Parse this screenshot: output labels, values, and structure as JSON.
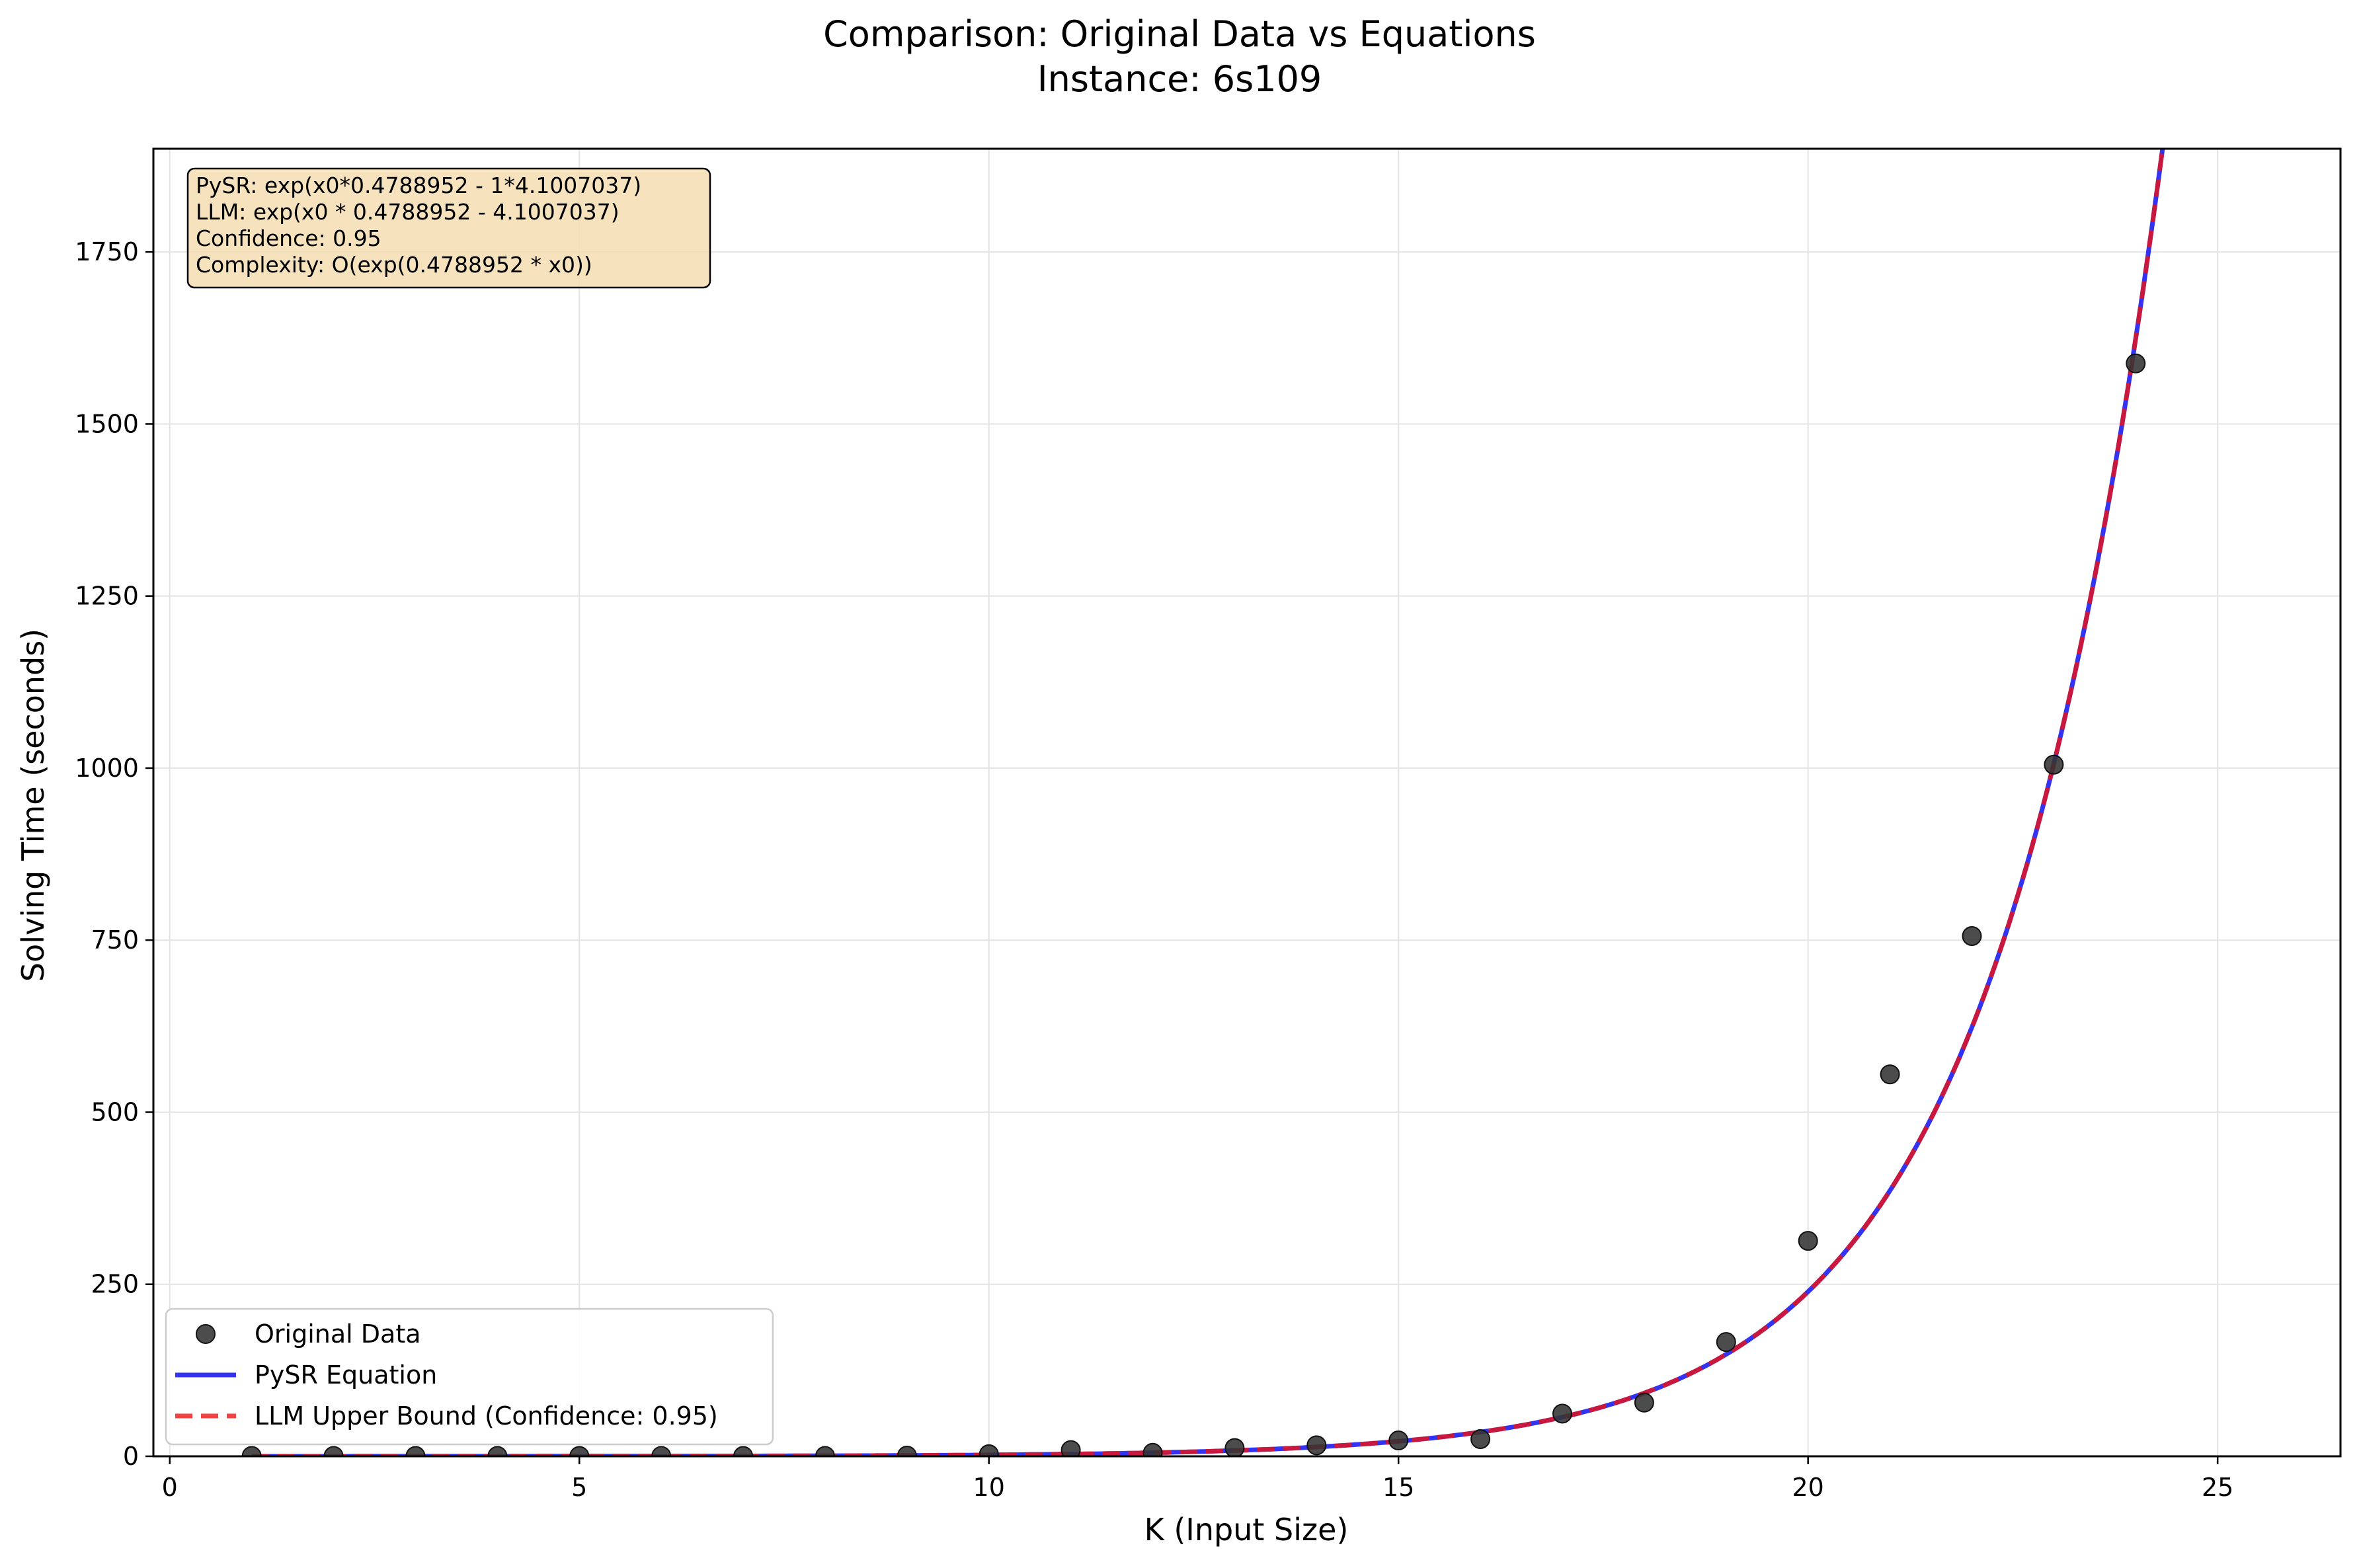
{
  "chart_data": {
    "type": "scatter",
    "title": "Comparison: Original Data vs Equations",
    "subtitle": "Instance: 6s109",
    "xlabel": "K (Input Size)",
    "ylabel": "Solving Time (seconds)",
    "xlim": [
      -0.2,
      26.5
    ],
    "ylim": [
      0,
      1900
    ],
    "x_ticks": [
      0,
      5,
      10,
      15,
      20,
      25
    ],
    "y_ticks": [
      0,
      250,
      500,
      750,
      1000,
      1250,
      1500,
      1750
    ],
    "grid": true,
    "legend_position": "lower-left",
    "annotation": {
      "lines": [
        "PySR: exp(x0*0.4788952 - 1*4.1007037)",
        "LLM: exp(x0 * 0.4788952 - 4.1007037)",
        "Confidence: 0.95",
        "Complexity: O(exp(0.4788952 * x0))"
      ],
      "position": "top-left"
    },
    "series": [
      {
        "name": "Original Data",
        "kind": "scatter",
        "color": "#333333",
        "x": [
          1,
          2,
          3,
          4,
          5,
          6,
          7,
          8,
          9,
          10,
          11,
          12,
          13,
          14,
          15,
          16,
          17,
          18,
          19,
          20,
          21,
          22,
          23,
          24
        ],
        "y": [
          0.5,
          0.5,
          0.5,
          0.5,
          0.5,
          0.5,
          0.5,
          0.5,
          1,
          3,
          9,
          5,
          12,
          16,
          23,
          25,
          62,
          78,
          166,
          313,
          555,
          756,
          1005,
          1588
        ]
      },
      {
        "name": "PySR Equation",
        "kind": "line",
        "color": "#0000ee",
        "equation": {
          "a": 0.4788952,
          "b": 4.1007037
        },
        "x_range": [
          1,
          24.5
        ]
      },
      {
        "name": "LLM Upper Bound (Confidence: 0.95)",
        "kind": "dashed-line",
        "color": "#ee1111",
        "equation": {
          "a": 0.4788952,
          "b": 4.1007037
        },
        "x_range": [
          1,
          24.5
        ]
      }
    ]
  }
}
